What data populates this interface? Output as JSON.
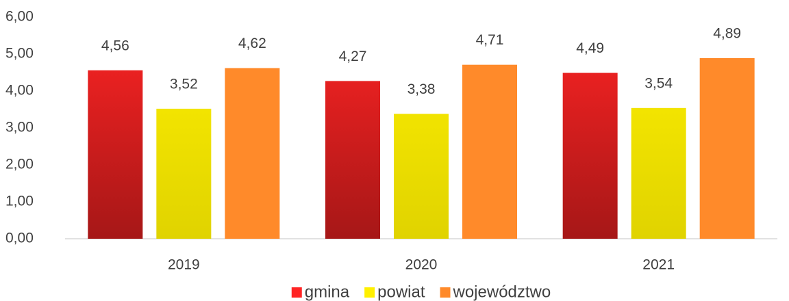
{
  "chart_data": {
    "type": "bar",
    "categories": [
      "2019",
      "2020",
      "2021"
    ],
    "series": [
      {
        "name": "gmina",
        "color": "#ff2424",
        "values": [
          4.56,
          4.27,
          4.49
        ],
        "value_labels": [
          "4,56",
          "4,27",
          "4,49"
        ]
      },
      {
        "name": "powiat",
        "color": "#fff000",
        "values": [
          3.52,
          3.38,
          3.54
        ],
        "value_labels": [
          "3,52",
          "3,38",
          "3,54"
        ]
      },
      {
        "name": "województwo",
        "color": "#ff8a2a",
        "values": [
          4.62,
          4.71,
          4.89
        ],
        "value_labels": [
          "4,62",
          "4,71",
          "4,89"
        ]
      }
    ],
    "ylim": [
      0,
      6
    ],
    "yticks": [
      {
        "value": 0,
        "label": "0,00"
      },
      {
        "value": 1,
        "label": "1,00"
      },
      {
        "value": 2,
        "label": "2,00"
      },
      {
        "value": 3,
        "label": "3,00"
      },
      {
        "value": 4,
        "label": "4,00"
      },
      {
        "value": 5,
        "label": "5,00"
      },
      {
        "value": 6,
        "label": "6,00"
      }
    ],
    "legend": "bottom"
  }
}
